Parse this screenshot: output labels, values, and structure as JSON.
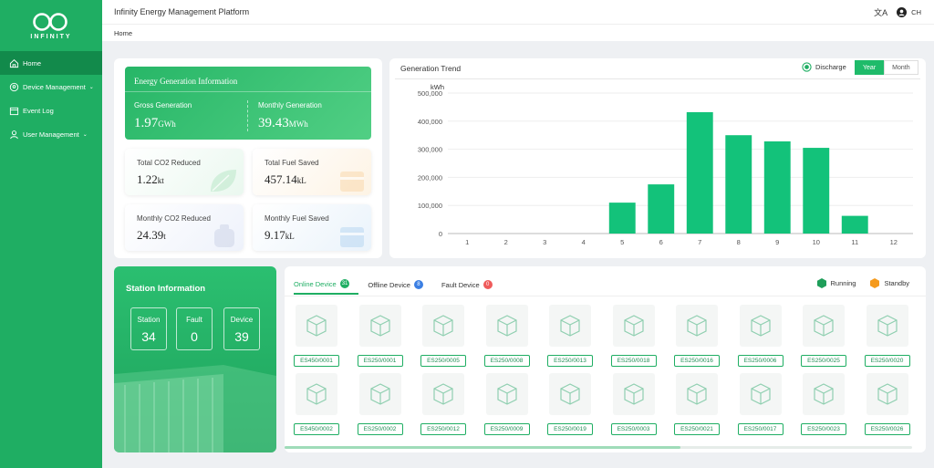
{
  "app": {
    "logo_text": "INFINITY",
    "title": "Infinity Energy Management Platform",
    "user": "CH"
  },
  "nav": [
    {
      "label": "Home",
      "icon": "home-icon",
      "active": true
    },
    {
      "label": "Device Management",
      "icon": "map-pin-icon",
      "chevron": true
    },
    {
      "label": "Event Log",
      "icon": "calendar-icon"
    },
    {
      "label": "User Management",
      "icon": "user-icon",
      "chevron": true
    }
  ],
  "breadcrumb": "Home",
  "energy": {
    "title": "Energy Generation Information",
    "gross_label": "Gross Generation",
    "gross_value": "1.97",
    "gross_unit": "GWh",
    "monthly_label": "Monthly Generation",
    "monthly_value": "39.43",
    "monthly_unit": "MWh",
    "co2_total_label": "Total CO2 Reduced",
    "co2_total_value": "1.22",
    "co2_total_unit": "kt",
    "fuel_total_label": "Total Fuel Saved",
    "fuel_total_value": "457.14",
    "fuel_total_unit": "kL",
    "co2_month_label": "Monthly CO2 Reduced",
    "co2_month_value": "24.39",
    "co2_month_unit": "t",
    "fuel_month_label": "Monthly Fuel Saved",
    "fuel_month_value": "9.17",
    "fuel_month_unit": "kL"
  },
  "trend": {
    "title": "Generation Trend",
    "legend": "Discharge",
    "toggle_year": "Year",
    "toggle_month": "Month"
  },
  "chart_data": {
    "type": "bar",
    "title": "Generation Trend",
    "ylabel": "kWh",
    "xlabel": "",
    "categories": [
      "1",
      "2",
      "3",
      "4",
      "5",
      "6",
      "7",
      "8",
      "9",
      "10",
      "11",
      "12"
    ],
    "series": [
      {
        "name": "Discharge",
        "values": [
          0,
          0,
          0,
          0,
          110000,
          175000,
          432000,
          350000,
          328000,
          305000,
          63000,
          0
        ]
      }
    ],
    "ylim": [
      0,
      500000
    ],
    "yticks": [
      "0",
      "100,000",
      "200,000",
      "300,000",
      "400,000",
      "500,000"
    ],
    "color": "#13c27a"
  },
  "station": {
    "title": "Station Information",
    "station_label": "Station",
    "station_value": "34",
    "fault_label": "Fault",
    "fault_value": "0",
    "device_label": "Device",
    "device_value": "39"
  },
  "devices": {
    "tabs": [
      {
        "label": "Online Device",
        "count": "31",
        "color": "#1fae63"
      },
      {
        "label": "Offline Device",
        "count": "8",
        "color": "#3b7fe3"
      },
      {
        "label": "Fault Device",
        "count": "0",
        "color": "#ef5b5b"
      }
    ],
    "legend_running": "Running",
    "legend_standby": "Standby",
    "running_color": "#1f9e5a",
    "standby_color": "#f59a1c",
    "row1": [
      "ES450/0001",
      "ES250/0001",
      "ES250/0005",
      "ES250/0008",
      "ES250/0013",
      "ES250/0018",
      "ES250/0016",
      "ES250/0006",
      "ES250/0025",
      "ES250/0020"
    ],
    "row2": [
      "ES450/0002",
      "ES250/0002",
      "ES250/0012",
      "ES250/0009",
      "ES250/0019",
      "ES250/0003",
      "ES250/0021",
      "ES250/0017",
      "ES250/0023",
      "ES250/0026"
    ]
  }
}
